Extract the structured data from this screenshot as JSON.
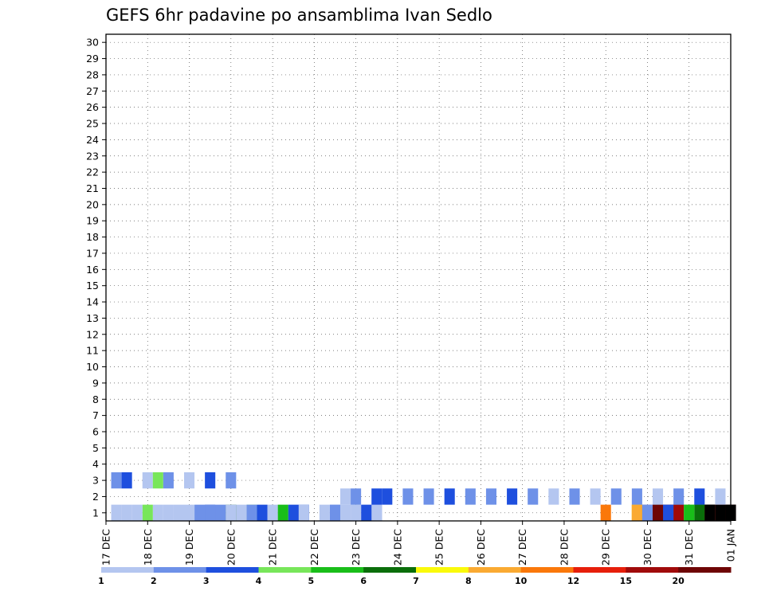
{
  "chart_data": {
    "type": "heatmap",
    "title": "GEFS 6hr padavine po ansamblima Ivan Sedlo",
    "xlabel": "",
    "ylabel": "",
    "x_tick_labels": [
      "17 DEC",
      "18 DEC",
      "19 DEC",
      "20 DEC",
      "21 DEC",
      "22 DEC",
      "23 DEC",
      "24 DEC",
      "25 DEC",
      "26 DEC",
      "27 DEC",
      "28 DEC",
      "29 DEC",
      "30 DEC",
      "31 DEC",
      "01 JAN"
    ],
    "y_tick_labels": [
      "1",
      "2",
      "3",
      "4",
      "5",
      "6",
      "7",
      "8",
      "9",
      "10",
      "11",
      "12",
      "13",
      "14",
      "15",
      "16",
      "17",
      "18",
      "19",
      "20",
      "21",
      "22",
      "23",
      "24",
      "25",
      "26",
      "27",
      "28",
      "29",
      "30"
    ],
    "ylim": [
      0.5,
      30.5
    ],
    "time_step_hours": 6,
    "steps": 61,
    "grid": true,
    "colorbar": {
      "labels": [
        "1",
        "2",
        "3",
        "4",
        "5",
        "6",
        "7",
        "8",
        "10",
        "12",
        "15",
        "20"
      ],
      "colors": [
        "#b4c6f0",
        "#6e91e8",
        "#1e4fde",
        "#78e65a",
        "#19be19",
        "#0a6e0a",
        "#fafa0a",
        "#faaa32",
        "#fa780a",
        "#e61e0a",
        "#a00a0a",
        "#6e0505"
      ]
    },
    "cells": [
      [
        1,
        23,
        1
      ],
      [
        9,
        48,
        1
      ],
      [
        9,
        51,
        1
      ],
      [
        7,
        51,
        1
      ],
      [
        8,
        51,
        1
      ],
      [
        11,
        52,
        1
      ],
      [
        14,
        53,
        1
      ],
      [
        14,
        55,
        1
      ],
      [
        14,
        57,
        1
      ],
      [
        8,
        60,
        1
      ],
      [
        17,
        59,
        1
      ],
      [
        3,
        55,
        1
      ],
      [
        1,
        52,
        1
      ],
      [
        6,
        56,
        1
      ],
      [
        7,
        56,
        1
      ],
      [
        5,
        57,
        1
      ],
      [
        6,
        57,
        1
      ],
      [
        5,
        58,
        1
      ],
      [
        7,
        58,
        1
      ],
      [
        12,
        58,
        1
      ],
      [
        13,
        58,
        1
      ],
      [
        14,
        58,
        1
      ],
      [
        1,
        54,
        1
      ],
      [
        1,
        56,
        1
      ],
      [
        12,
        53,
        1
      ],
      [
        12,
        54,
        1
      ],
      [
        11,
        55,
        1
      ],
      [
        3,
        59,
        1
      ],
      [
        3,
        60,
        1
      ],
      [
        9,
        59,
        1
      ],
      [
        10,
        59,
        1
      ],
      [
        11,
        59,
        1
      ],
      [
        12,
        59,
        1
      ],
      [
        13,
        59,
        1
      ],
      [
        12,
        60,
        1
      ],
      [
        13,
        60,
        1
      ],
      [
        2,
        52,
        1
      ],
      [
        3,
        54,
        1
      ],
      [
        4,
        56,
        1
      ],
      [
        5,
        56,
        1
      ],
      [
        2,
        26,
        1
      ],
      [
        1,
        26,
        1
      ],
      [
        3,
        25,
        1
      ],
      [
        1,
        24,
        1
      ],
      [
        1,
        22,
        1
      ],
      [
        2,
        22,
        1
      ],
      [
        1,
        21,
        1
      ],
      [
        3,
        19,
        1
      ],
      [
        1,
        19,
        1
      ],
      [
        3,
        18,
        1
      ],
      [
        5,
        17,
        1
      ],
      [
        1,
        16,
        1
      ],
      [
        3,
        15,
        1
      ],
      [
        4,
        14,
        1
      ],
      [
        2,
        14,
        1
      ],
      [
        1,
        13,
        1
      ],
      [
        6,
        12,
        1
      ],
      [
        1,
        12,
        1
      ],
      [
        2,
        11,
        1
      ],
      [
        3,
        10,
        1
      ],
      [
        2,
        10,
        1
      ],
      [
        2,
        9,
        1
      ],
      [
        1,
        8,
        1
      ],
      [
        1,
        7,
        1
      ],
      [
        1,
        6,
        1
      ],
      [
        1,
        5,
        1
      ],
      [
        4,
        4,
        1
      ],
      [
        1,
        3,
        1
      ],
      [
        1,
        2,
        1
      ],
      [
        1,
        1,
        1
      ],
      [
        1,
        23,
        2
      ],
      [
        2,
        24,
        2
      ],
      [
        3,
        26,
        2
      ],
      [
        3,
        27,
        2
      ],
      [
        2,
        29,
        2
      ],
      [
        2,
        31,
        2
      ],
      [
        3,
        33,
        2
      ],
      [
        2,
        35,
        2
      ],
      [
        2,
        37,
        2
      ],
      [
        3,
        39,
        2
      ],
      [
        2,
        41,
        2
      ],
      [
        1,
        43,
        2
      ],
      [
        2,
        45,
        2
      ],
      [
        1,
        47,
        2
      ],
      [
        2,
        49,
        2
      ],
      [
        2,
        51,
        2
      ],
      [
        1,
        53,
        2
      ],
      [
        2,
        55,
        2
      ],
      [
        3,
        57,
        2
      ],
      [
        1,
        59,
        2
      ],
      [
        2,
        1,
        3
      ],
      [
        3,
        2,
        3
      ],
      [
        1,
        4,
        3
      ],
      [
        4,
        5,
        3
      ],
      [
        2,
        6,
        3
      ],
      [
        1,
        8,
        3
      ],
      [
        3,
        10,
        3
      ],
      [
        2,
        12,
        3
      ]
    ]
  }
}
